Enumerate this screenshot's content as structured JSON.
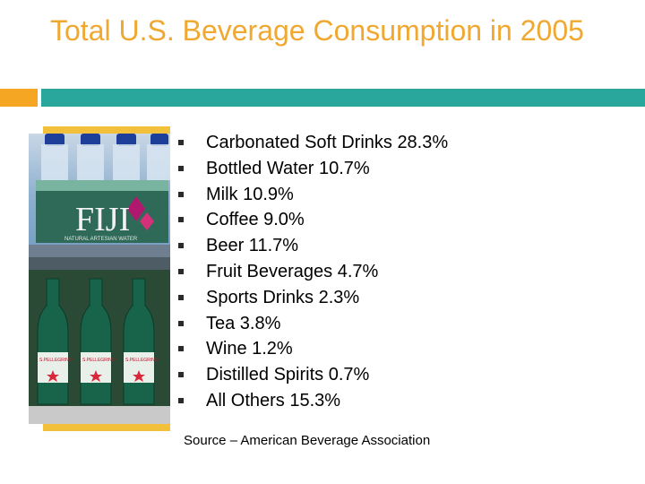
{
  "slide": {
    "title": "Total U.S. Beverage Consumption in 2005",
    "items": [
      "Carbonated Soft Drinks  28.3%",
      "Bottled Water  10.7%",
      "Milk 10.9%",
      "Coffee 9.0%",
      "Beer 11.7%",
      "Fruit Beverages 4.7%",
      "Sports Drinks 2.3%",
      "Tea 3.8%",
      "Wine 1.2%",
      "Distilled Spirits 0.7%",
      "All Others 15.3%"
    ],
    "source": "Source – American Beverage Association"
  },
  "photo": {
    "upper_label": "FIJI",
    "upper_small": "NATURAL ARTESIAN WATER",
    "lower_label": "S.PELLEGRINO"
  },
  "colors": {
    "title": "#f0a830",
    "accent_orange": "#f5a623",
    "accent_teal": "#2aa79d"
  }
}
